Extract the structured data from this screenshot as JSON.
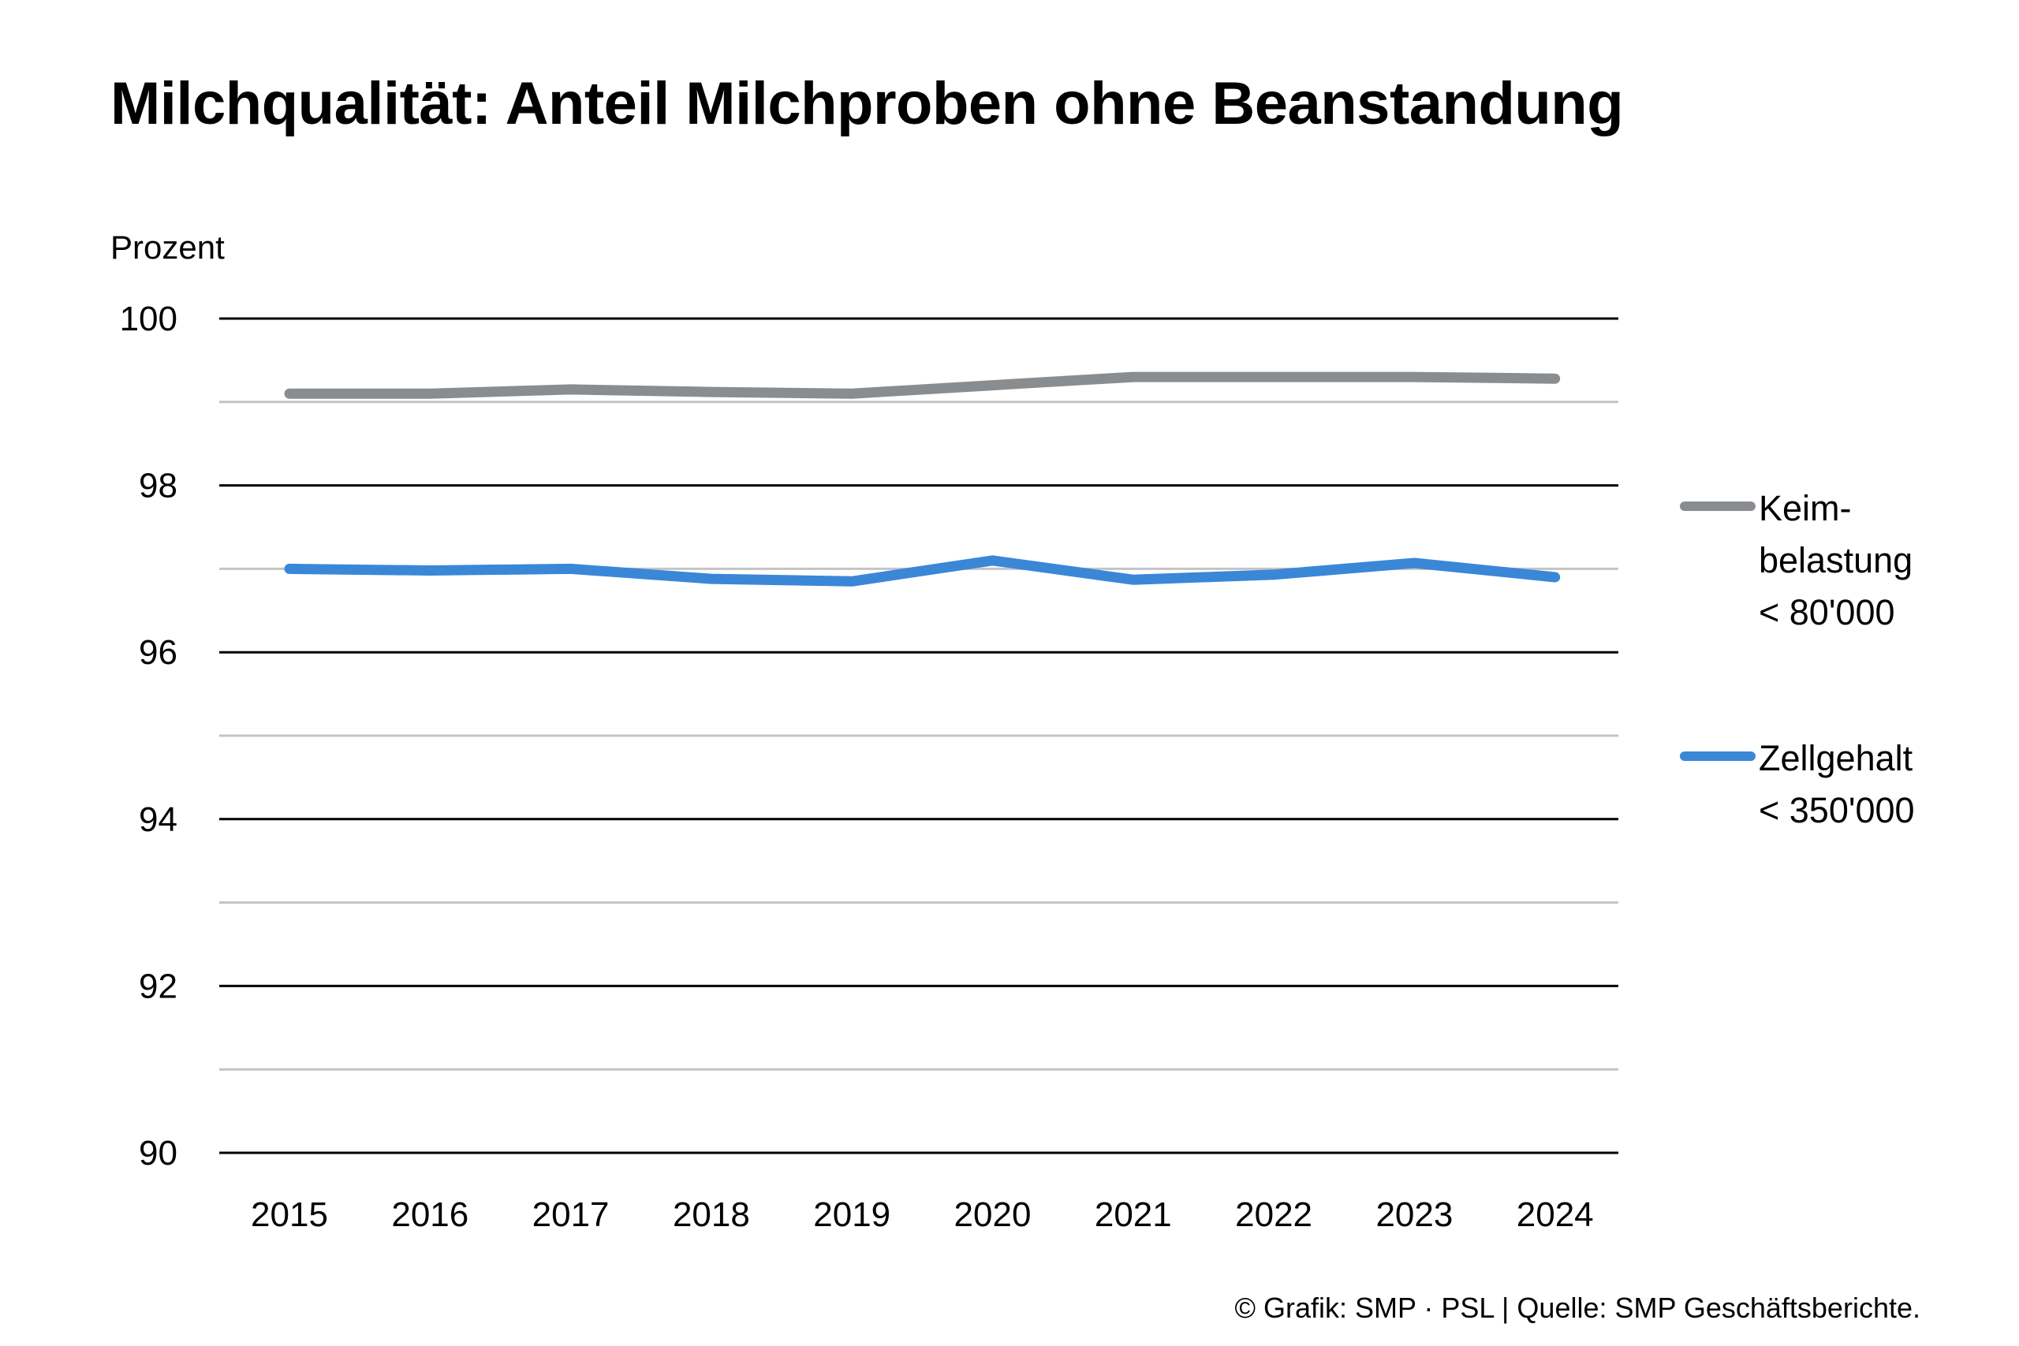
{
  "title": "Milchqualität: Anteil Milchproben ohne Beanstandung",
  "footer": "© Grafik: SMP · PSL | Quelle: SMP Geschäftsberichte.",
  "chart_data": {
    "type": "line",
    "title": "Milchqualität: Anteil Milchproben ohne Beanstandung",
    "ylabel": "Prozent",
    "xlabel": "",
    "x": [
      "2015",
      "2016",
      "2017",
      "2018",
      "2019",
      "2020",
      "2021",
      "2022",
      "2023",
      "2024"
    ],
    "ylim": [
      90,
      100
    ],
    "yticks": [
      "100",
      "98",
      "96",
      "94",
      "92",
      "90"
    ],
    "grid": true,
    "legend_position": "right",
    "series": [
      {
        "name": "Keim-\nbelastung\n< 80'000",
        "color": "#8a8d90",
        "values": [
          99.1,
          99.1,
          99.15,
          99.12,
          99.1,
          99.2,
          99.3,
          99.3,
          99.3,
          99.28
        ]
      },
      {
        "name": "Zellgehalt\n< 350'000",
        "color": "#3a87d8",
        "values": [
          97.0,
          96.98,
          97.0,
          96.88,
          96.85,
          97.1,
          96.87,
          96.93,
          97.07,
          96.9
        ]
      }
    ]
  }
}
